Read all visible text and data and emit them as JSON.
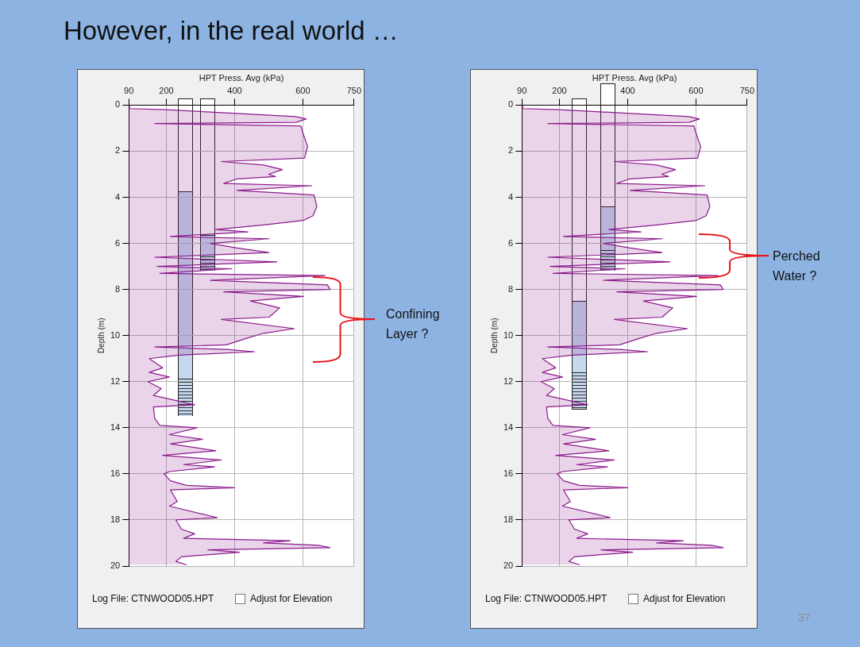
{
  "chart_data": [
    {
      "type": "other",
      "title": "However, in the real world …",
      "annotations": [
        "37"
      ]
    },
    {
      "type": "area",
      "orientation": "horizontal",
      "xlabel": "HPT Press. Avg (kPa)",
      "ylabel": "Depth (m)",
      "xlim": [
        90,
        750
      ],
      "xticks": [
        90,
        200,
        400,
        600,
        750
      ],
      "ylim": [
        20,
        0
      ],
      "yticks": [
        0,
        2,
        4,
        6,
        8,
        10,
        12,
        14,
        16,
        18,
        20
      ],
      "grid": true,
      "legend": false,
      "marker": "none",
      "x": [
        0,
        0.15,
        0.2,
        0.3,
        0.5,
        0.6,
        0.75,
        0.8,
        0.9,
        1.2,
        1.8,
        2.3,
        2.45,
        2.6,
        2.8,
        3.0,
        3.1,
        3.2,
        3.4,
        3.5,
        3.7,
        3.9,
        4.4,
        4.8,
        5.0,
        5.2,
        5.4,
        5.5,
        5.7,
        5.8,
        6.0,
        6.2,
        6.4,
        6.6,
        6.8,
        7.0,
        7.1,
        7.3,
        7.4,
        7.6,
        7.8,
        8.0,
        8.1,
        8.3,
        8.5,
        8.8,
        9.2,
        9.3,
        9.7,
        9.9,
        10.1,
        10.4,
        10.5,
        10.6,
        10.7,
        10.85,
        11.0,
        11.4,
        11.6,
        11.8,
        12.0,
        12.3,
        12.6,
        13.0,
        13.1,
        13.6,
        13.9,
        14.0,
        14.3,
        14.5,
        14.7,
        15.0,
        15.2,
        15.4,
        15.6,
        15.7,
        15.9,
        16.0,
        16.3,
        16.5,
        16.6,
        16.7,
        17.2,
        17.4,
        17.9,
        18.0,
        18.4,
        18.6,
        18.8,
        18.9,
        19.0,
        19.1,
        19.2,
        19.3,
        19.4,
        19.6,
        19.8,
        19.95
      ],
      "series": [
        {
          "color": "#8b1a8b",
          "values": [
            92,
            92,
            197,
            329,
            579,
            610,
            580,
            166,
            594,
            600,
            614,
            605,
            361,
            485,
            540,
            500,
            520,
            407,
            368,
            626,
            407,
            633,
            641,
            630,
            602,
            485,
            345,
            439,
            212,
            501,
            329,
            407,
            501,
            166,
            524,
            173,
            392,
            181,
            665,
            329,
            672,
            680,
            368,
            602,
            446,
            532,
            501,
            361,
            575,
            485,
            439,
            376,
            166,
            376,
            458,
            236,
            150,
            189,
            150,
            209,
            146,
            185,
            162,
            283,
            162,
            166,
            181,
            290,
            209,
            306,
            212,
            345,
            189,
            361,
            251,
            341,
            209,
            193,
            212,
            259,
            400,
            212,
            232,
            209,
            349,
            228,
            244,
            283,
            251,
            563,
            485,
            645,
            680,
            322,
            415,
            244,
            228,
            259
          ]
        }
      ],
      "annotations": [
        "Confining Layer ?",
        "Log File: CTNWOOD05.HPT",
        "Adjust for Elevation"
      ]
    },
    {
      "type": "area",
      "orientation": "horizontal",
      "xlabel": "HPT Press. Avg (kPa)",
      "ylabel": "Depth (m)",
      "xlim": [
        90,
        750
      ],
      "xticks": [
        90,
        200,
        400,
        600,
        750
      ],
      "ylim": [
        20,
        0
      ],
      "yticks": [
        0,
        2,
        4,
        6,
        8,
        10,
        12,
        14,
        16,
        18,
        20
      ],
      "grid": true,
      "legend": false,
      "marker": "none",
      "x": [
        0,
        0.15,
        0.2,
        0.3,
        0.5,
        0.6,
        0.75,
        0.8,
        0.9,
        1.2,
        1.8,
        2.3,
        2.45,
        2.6,
        2.8,
        3.0,
        3.1,
        3.2,
        3.4,
        3.5,
        3.7,
        3.9,
        4.4,
        4.8,
        5.0,
        5.2,
        5.4,
        5.5,
        5.7,
        5.8,
        6.0,
        6.2,
        6.4,
        6.6,
        6.8,
        7.0,
        7.1,
        7.3,
        7.4,
        7.6,
        7.8,
        8.0,
        8.1,
        8.3,
        8.5,
        8.8,
        9.2,
        9.3,
        9.7,
        9.9,
        10.1,
        10.4,
        10.5,
        10.6,
        10.7,
        10.85,
        11.0,
        11.4,
        11.6,
        11.8,
        12.0,
        12.3,
        12.6,
        13.0,
        13.1,
        13.6,
        13.9,
        14.0,
        14.3,
        14.5,
        14.7,
        15.0,
        15.2,
        15.4,
        15.6,
        15.7,
        15.9,
        16.0,
        16.3,
        16.5,
        16.6,
        16.7,
        17.2,
        17.4,
        17.9,
        18.0,
        18.4,
        18.6,
        18.8,
        18.9,
        19.0,
        19.1,
        19.2,
        19.3,
        19.4,
        19.6,
        19.8,
        19.95
      ],
      "series": [
        {
          "color": "#8b1a8b",
          "values": [
            92,
            92,
            197,
            329,
            579,
            610,
            580,
            166,
            594,
            600,
            614,
            605,
            361,
            485,
            540,
            500,
            520,
            407,
            368,
            626,
            407,
            633,
            641,
            630,
            602,
            485,
            345,
            439,
            212,
            501,
            329,
            407,
            501,
            166,
            524,
            173,
            392,
            181,
            665,
            329,
            672,
            680,
            368,
            602,
            446,
            532,
            501,
            361,
            575,
            485,
            439,
            376,
            166,
            376,
            458,
            236,
            150,
            189,
            150,
            209,
            146,
            185,
            162,
            283,
            162,
            166,
            181,
            290,
            209,
            306,
            212,
            345,
            189,
            361,
            251,
            341,
            209,
            193,
            212,
            259,
            400,
            212,
            232,
            209,
            349,
            228,
            244,
            283,
            251,
            563,
            485,
            645,
            680,
            322,
            415,
            244,
            228,
            259
          ]
        }
      ],
      "annotations": [
        "Perched Water ?",
        "Log File: CTNWOOD05.HPT",
        "Adjust for Elevation"
      ]
    }
  ]
}
